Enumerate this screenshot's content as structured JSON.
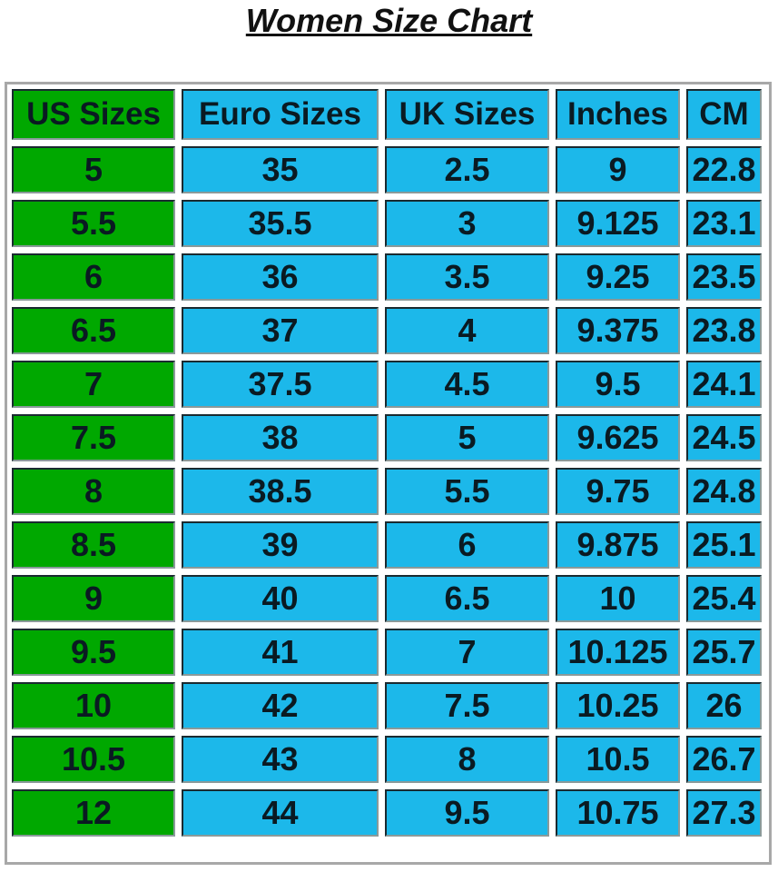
{
  "chart_data": {
    "type": "table",
    "title": "Women Size Chart",
    "columns": [
      "US Sizes",
      "Euro Sizes",
      "UK Sizes",
      "Inches",
      "CM"
    ],
    "rows": [
      [
        "5",
        "35",
        "2.5",
        "9",
        "22.8"
      ],
      [
        "5.5",
        "35.5",
        "3",
        "9.125",
        "23.1"
      ],
      [
        "6",
        "36",
        "3.5",
        "9.25",
        "23.5"
      ],
      [
        "6.5",
        "37",
        "4",
        "9.375",
        "23.8"
      ],
      [
        "7",
        "37.5",
        "4.5",
        "9.5",
        "24.1"
      ],
      [
        "7.5",
        "38",
        "5",
        "9.625",
        "24.5"
      ],
      [
        "8",
        "38.5",
        "5.5",
        "9.75",
        "24.8"
      ],
      [
        "8.5",
        "39",
        "6",
        "9.875",
        "25.1"
      ],
      [
        "9",
        "40",
        "6.5",
        "10",
        "25.4"
      ],
      [
        "9.5",
        "41",
        "7",
        "10.125",
        "25.7"
      ],
      [
        "10",
        "42",
        "7.5",
        "10.25",
        "26"
      ],
      [
        "10.5",
        "43",
        "8",
        "10.5",
        "26.7"
      ],
      [
        "12",
        "44",
        "9.5",
        "10.75",
        "27.3"
      ]
    ],
    "colors": {
      "us_column": "#00a800",
      "other_columns": "#1cb8ea"
    }
  }
}
